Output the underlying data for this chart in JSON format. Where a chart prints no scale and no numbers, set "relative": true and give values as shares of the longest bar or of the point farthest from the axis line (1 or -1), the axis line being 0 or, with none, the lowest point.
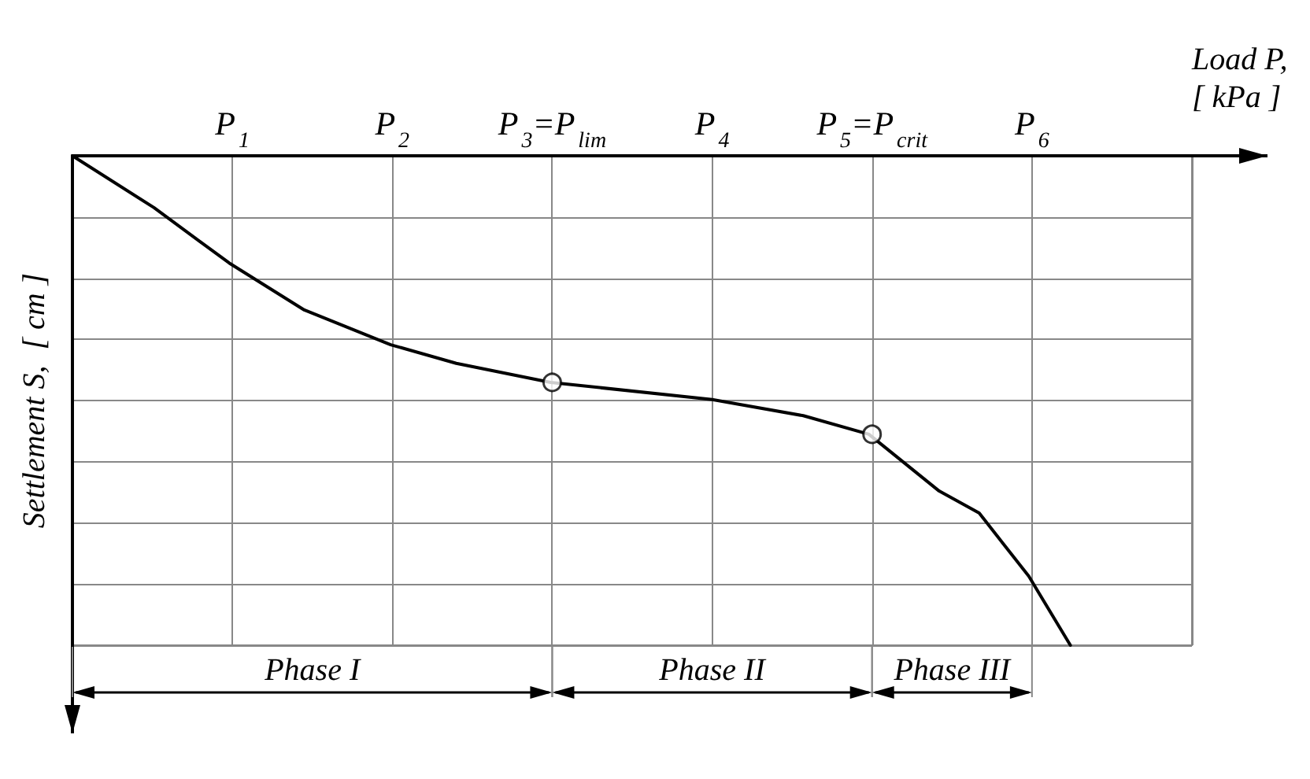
{
  "chart_data": {
    "type": "line",
    "relative": true,
    "xlabel": "Load P,\n[ kPa ]",
    "ylabel": "Settlement S,  [ cm ]",
    "xlim": [
      0,
      7
    ],
    "xticks": [
      {
        "value": 1,
        "label": "P$_{1}$"
      },
      {
        "value": 2,
        "label": "P$_{2}$"
      },
      {
        "value": 3,
        "label": "P$_{3}$=P$_{lim}$"
      },
      {
        "value": 4,
        "label": "P$_{4}$"
      },
      {
        "value": 5,
        "label": "P$_{5}$=P$_{crit}$"
      },
      {
        "value": 6,
        "label": "P$_{6}$"
      }
    ],
    "grid": true,
    "marker": "none",
    "line_style": "solid",
    "series": [
      {
        "color": "#000000",
        "x": [
          0,
          0.51,
          0.98,
          1.45,
          1.99,
          2.4,
          2.99,
          4.0,
          4.57,
          4.98,
          5.42,
          5.67,
          5.98,
          6.24
        ],
        "values": [
          0,
          -0.106,
          -0.219,
          -0.315,
          -0.386,
          -0.424,
          -0.463,
          -0.498,
          -0.531,
          -0.569,
          -0.685,
          -0.73,
          -0.859,
          -1
        ]
      },
      {
        "type": "scatter",
        "marker": "circle",
        "color": "#ffffff",
        "x": [
          3,
          5
        ],
        "values": [
          -0.463,
          -0.569
        ]
      }
    ],
    "annotations": [
      "Phase I",
      "Phase II",
      "Phase III"
    ]
  }
}
